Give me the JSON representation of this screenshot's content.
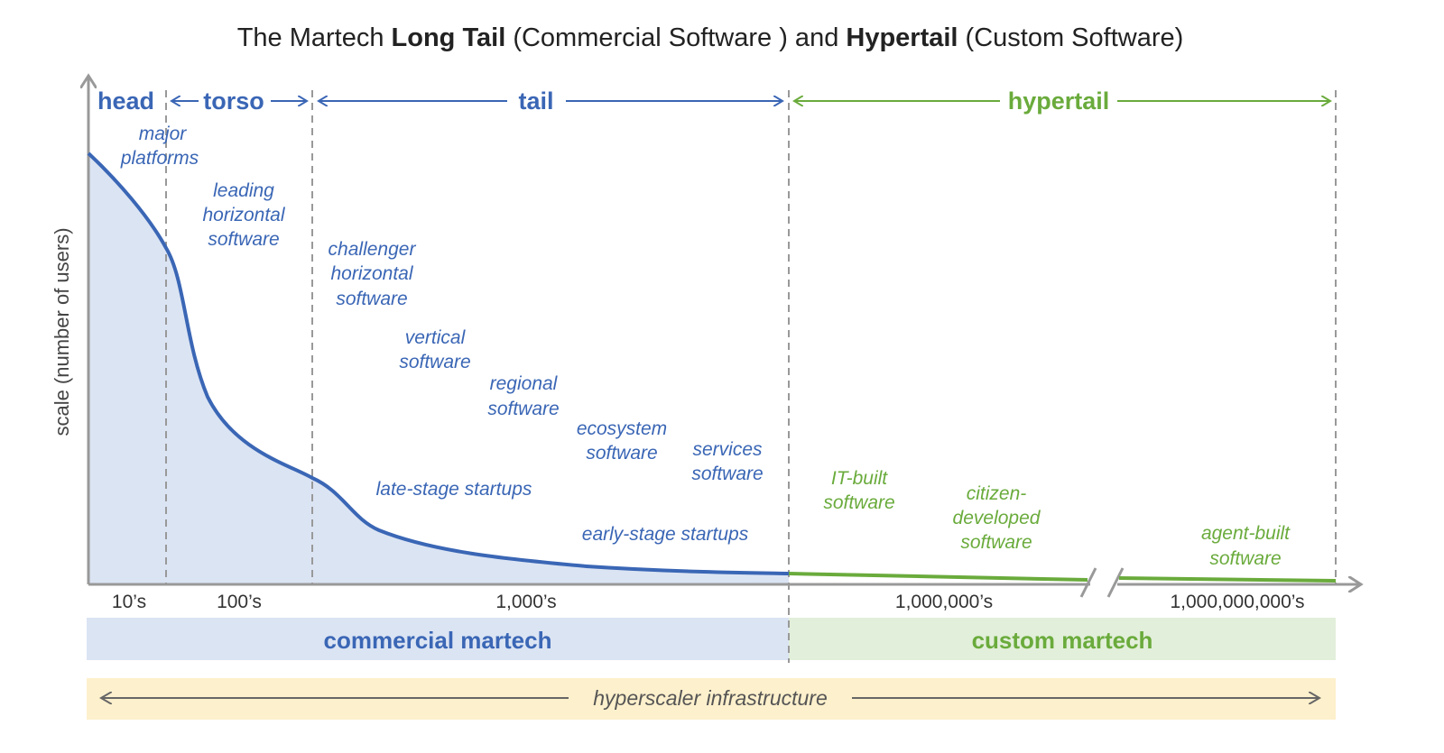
{
  "title": {
    "part1": "The Martech ",
    "bold1": "Long Tail",
    "part2": " (Commercial Software ) and ",
    "bold2": "Hypertail",
    "part3": " (Custom Software)"
  },
  "y_axis_label": "scale (number of users)",
  "segments": {
    "head": "head",
    "torso": "torso",
    "tail": "tail",
    "hypertail": "hypertail"
  },
  "labels": {
    "major_platforms": [
      "major",
      "platforms"
    ],
    "leading_horizontal": [
      "leading",
      "horizontal",
      "software"
    ],
    "challenger_horizontal": [
      "challenger",
      "horizontal",
      "software"
    ],
    "vertical": [
      "vertical",
      "software"
    ],
    "regional": [
      "regional",
      "software"
    ],
    "ecosystem": [
      "ecosystem",
      "software"
    ],
    "services": [
      "services",
      "software"
    ],
    "late_stage": "late-stage startups",
    "early_stage": "early-stage startups",
    "it_built": [
      "IT-built",
      "software"
    ],
    "citizen": [
      "citizen-",
      "developed",
      "software"
    ],
    "agent_built": [
      "agent-built",
      "software"
    ]
  },
  "x_ticks": [
    "10’s",
    "100’s",
    "1,000’s",
    "1,000,000’s",
    "1,000,000,000’s"
  ],
  "bands": {
    "commercial": "commercial martech",
    "custom": "custom martech",
    "infrastructure": "hyperscaler infrastructure"
  },
  "colors": {
    "blue": "#3a66b5",
    "green": "#6aab3c",
    "blue_fill": "#dbe4f3",
    "green_fill": "#e2efda",
    "yellow_fill": "#fdf0cc"
  }
}
